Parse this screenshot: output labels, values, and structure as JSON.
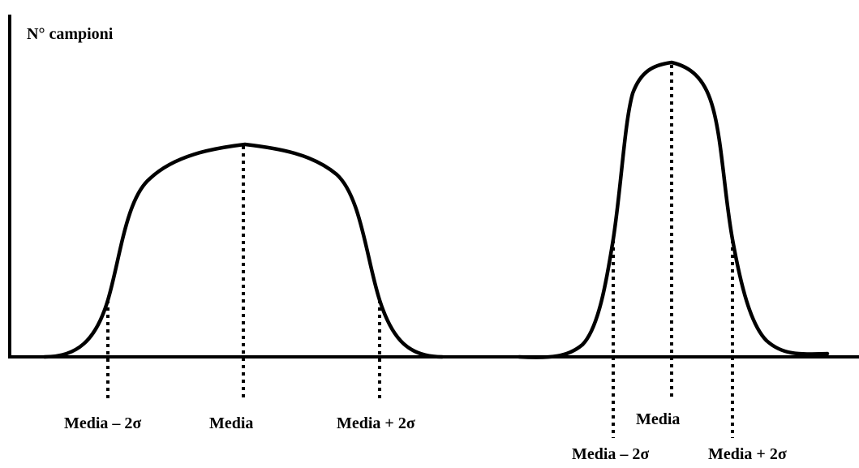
{
  "colors": {
    "ink": "#000000",
    "background": "#ffffff"
  },
  "axis": {
    "y_label": "N° campioni"
  },
  "distributions": [
    {
      "shape": "wide",
      "labels": {
        "minus_2sigma": "Media – 2σ",
        "mean": "Media",
        "plus_2sigma": "Media + 2σ"
      }
    },
    {
      "shape": "narrow",
      "labels": {
        "minus_2sigma": "Media – 2σ",
        "mean": "Media",
        "plus_2sigma": "Media + 2σ"
      }
    }
  ]
}
